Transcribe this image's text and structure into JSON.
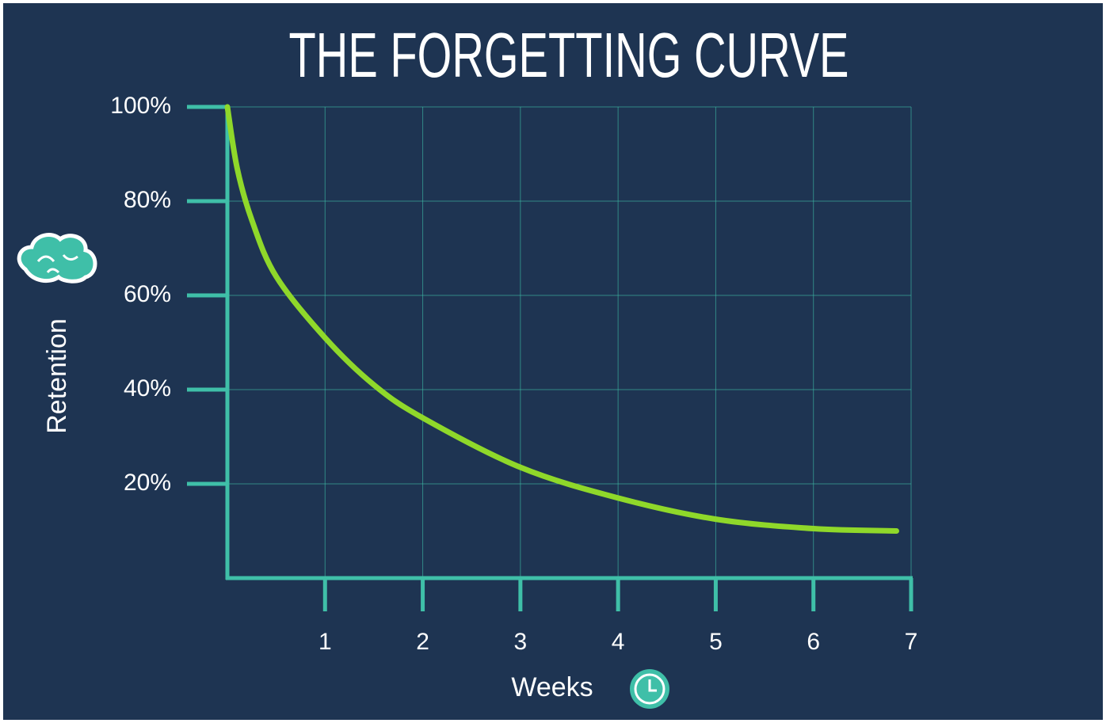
{
  "chart_data": {
    "type": "line",
    "title": "THE FORGETTING CURVE",
    "x_label": "Weeks",
    "y_label": "Retention",
    "x": [
      0,
      0.1,
      0.25,
      0.5,
      1,
      1.5,
      2,
      3,
      4,
      5,
      6,
      6.85
    ],
    "values": [
      100,
      87,
      76,
      64,
      51,
      41,
      34,
      23.5,
      17,
      12.5,
      10.5,
      10
    ],
    "color": "#8fd82a",
    "xlim": [
      0,
      7
    ],
    "xticks": [
      1,
      2,
      3,
      4,
      5,
      6,
      7
    ],
    "ylim": [
      0,
      100
    ],
    "yticks": [
      {
        "value": 20,
        "label": "20%"
      },
      {
        "value": 40,
        "label": "40%"
      },
      {
        "value": 60,
        "label": "60%"
      },
      {
        "value": 80,
        "label": "80%"
      },
      {
        "value": 100,
        "label": "100%"
      }
    ],
    "grid": true
  }
}
